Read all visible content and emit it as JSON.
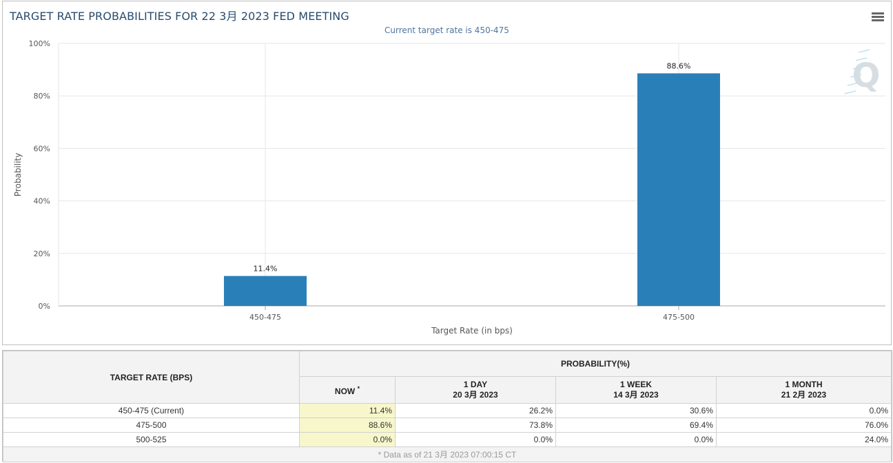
{
  "chart": {
    "title": "TARGET RATE PROBABILITIES FOR 22 3月 2023 FED MEETING",
    "subtitle": "Current target rate is 450-475",
    "menu_icon": "hamburger-menu-icon",
    "watermark_letter": "Q",
    "bar_color": "#2980b9"
  },
  "chart_data": {
    "type": "bar",
    "categories": [
      "450-475",
      "475-500"
    ],
    "values": [
      11.4,
      88.6
    ],
    "data_labels": [
      "11.4%",
      "88.6%"
    ],
    "title": "TARGET RATE PROBABILITIES FOR 22 3月 2023 FED MEETING",
    "subtitle": "Current target rate is 450-475",
    "xlabel": "Target Rate (in bps)",
    "ylabel": "Probability",
    "ylim": [
      0,
      100
    ],
    "yticks": [
      "0%",
      "20%",
      "40%",
      "60%",
      "80%",
      "100%"
    ],
    "ytick_values": [
      0,
      20,
      40,
      60,
      80,
      100
    ],
    "grid": true
  },
  "table": {
    "rate_header": "TARGET RATE (BPS)",
    "prob_header": "PROBABILITY(%)",
    "now_label": "NOW",
    "now_marker": "*",
    "columns": [
      {
        "title": "1 DAY",
        "date": "20 3月 2023"
      },
      {
        "title": "1 WEEK",
        "date": "14 3月 2023"
      },
      {
        "title": "1 MONTH",
        "date": "21 2月 2023"
      }
    ],
    "rows": [
      {
        "rate": "450-475 (Current)",
        "now": "11.4%",
        "day": "26.2%",
        "week": "30.6%",
        "month": "0.0%"
      },
      {
        "rate": "475-500",
        "now": "88.6%",
        "day": "73.8%",
        "week": "69.4%",
        "month": "76.0%"
      },
      {
        "rate": "500-525",
        "now": "0.0%",
        "day": "0.0%",
        "week": "0.0%",
        "month": "24.0%"
      }
    ],
    "footnote": "* Data as of 21 3月 2023 07:00:15 CT"
  }
}
